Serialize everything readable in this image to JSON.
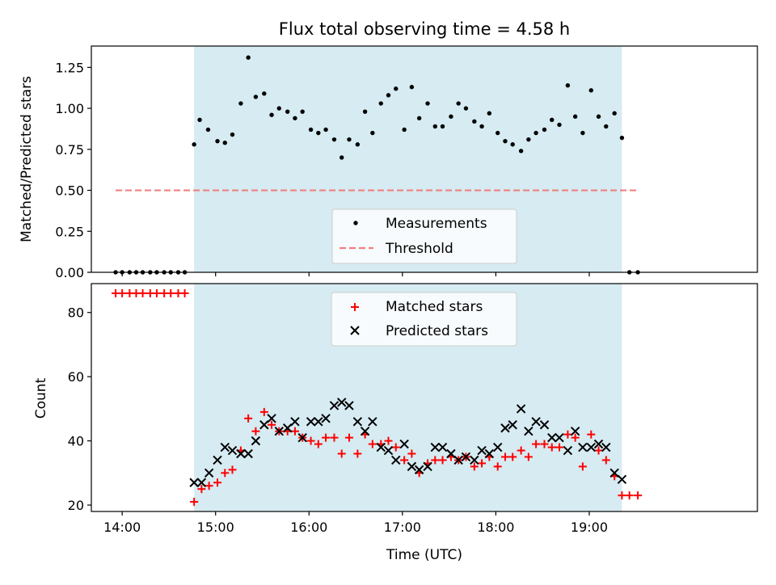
{
  "chart_data": [
    {
      "type": "scatter",
      "title": "Flux total observing time = 4.58 h",
      "ylabel": "Matched/Predicted stars",
      "xlabel": "",
      "xlim_hours": [
        13.67,
        20.8
      ],
      "ylim": [
        0,
        1.38
      ],
      "yticks": [
        "0.00",
        "0.25",
        "0.50",
        "0.75",
        "1.00",
        "1.25"
      ],
      "shaded_interval_hours": [
        14.77,
        19.35
      ],
      "threshold": {
        "name": "Threshold",
        "y": 0.5,
        "x_range_hours": [
          13.93,
          19.52
        ],
        "color": "#f08080"
      },
      "legend": {
        "placement": "lower-center",
        "entries": [
          "Measurements",
          "Threshold"
        ]
      },
      "series": [
        {
          "name": "Measurements",
          "color": "#000000",
          "points": [
            [
              13.93,
              0
            ],
            [
              14.0,
              0
            ],
            [
              14.08,
              0
            ],
            [
              14.15,
              0
            ],
            [
              14.22,
              0
            ],
            [
              14.3,
              0
            ],
            [
              14.37,
              0
            ],
            [
              14.45,
              0
            ],
            [
              14.52,
              0
            ],
            [
              14.6,
              0
            ],
            [
              14.67,
              0
            ],
            [
              14.77,
              0.78
            ],
            [
              14.83,
              0.93
            ],
            [
              14.92,
              0.87
            ],
            [
              15.02,
              0.8
            ],
            [
              15.1,
              0.79
            ],
            [
              15.18,
              0.84
            ],
            [
              15.27,
              1.03
            ],
            [
              15.35,
              1.31
            ],
            [
              15.43,
              1.07
            ],
            [
              15.52,
              1.09
            ],
            [
              15.6,
              0.96
            ],
            [
              15.68,
              1.0
            ],
            [
              15.77,
              0.98
            ],
            [
              15.85,
              0.94
            ],
            [
              15.93,
              0.98
            ],
            [
              16.02,
              0.87
            ],
            [
              16.1,
              0.85
            ],
            [
              16.18,
              0.87
            ],
            [
              16.27,
              0.81
            ],
            [
              16.35,
              0.7
            ],
            [
              16.43,
              0.81
            ],
            [
              16.52,
              0.78
            ],
            [
              16.6,
              0.98
            ],
            [
              16.68,
              0.85
            ],
            [
              16.77,
              1.03
            ],
            [
              16.85,
              1.08
            ],
            [
              16.93,
              1.12
            ],
            [
              17.02,
              0.87
            ],
            [
              17.1,
              1.13
            ],
            [
              17.18,
              0.94
            ],
            [
              17.27,
              1.03
            ],
            [
              17.35,
              0.89
            ],
            [
              17.43,
              0.89
            ],
            [
              17.52,
              0.95
            ],
            [
              17.6,
              1.03
            ],
            [
              17.68,
              1.0
            ],
            [
              17.77,
              0.92
            ],
            [
              17.85,
              0.89
            ],
            [
              17.93,
              0.97
            ],
            [
              18.02,
              0.85
            ],
            [
              18.1,
              0.8
            ],
            [
              18.18,
              0.78
            ],
            [
              18.27,
              0.74
            ],
            [
              18.35,
              0.81
            ],
            [
              18.43,
              0.85
            ],
            [
              18.52,
              0.87
            ],
            [
              18.6,
              0.93
            ],
            [
              18.68,
              0.9
            ],
            [
              18.77,
              1.14
            ],
            [
              18.85,
              0.95
            ],
            [
              18.93,
              0.85
            ],
            [
              19.02,
              1.11
            ],
            [
              19.1,
              0.95
            ],
            [
              19.18,
              0.89
            ],
            [
              19.27,
              0.97
            ],
            [
              19.35,
              0.82
            ],
            [
              19.43,
              0
            ],
            [
              19.52,
              0
            ]
          ]
        }
      ]
    },
    {
      "type": "scatter",
      "title": "",
      "xlabel": "Time (UTC)",
      "ylabel": "Count",
      "xlim_hours": [
        13.67,
        20.8
      ],
      "ylim": [
        18,
        89
      ],
      "xticks": [
        "14:00",
        "15:00",
        "16:00",
        "17:00",
        "18:00",
        "19:00"
      ],
      "yticks": [
        "20",
        "40",
        "60",
        "80"
      ],
      "shaded_interval_hours": [
        14.77,
        19.35
      ],
      "legend": {
        "placement": "upper-center",
        "entries": [
          "Matched stars",
          "Predicted stars"
        ]
      },
      "series": [
        {
          "name": "Matched stars",
          "color": "#ff0000",
          "points": [
            [
              13.93,
              86
            ],
            [
              14.0,
              86
            ],
            [
              14.08,
              86
            ],
            [
              14.15,
              86
            ],
            [
              14.22,
              86
            ],
            [
              14.3,
              86
            ],
            [
              14.37,
              86
            ],
            [
              14.45,
              86
            ],
            [
              14.52,
              86
            ],
            [
              14.6,
              86
            ],
            [
              14.67,
              86
            ],
            [
              14.77,
              21
            ],
            [
              14.85,
              25
            ],
            [
              14.93,
              26
            ],
            [
              15.02,
              27
            ],
            [
              15.1,
              30
            ],
            [
              15.18,
              31
            ],
            [
              15.27,
              37
            ],
            [
              15.35,
              47
            ],
            [
              15.43,
              43
            ],
            [
              15.52,
              49
            ],
            [
              15.6,
              45
            ],
            [
              15.68,
              43
            ],
            [
              15.77,
              43
            ],
            [
              15.85,
              43
            ],
            [
              15.93,
              41
            ],
            [
              16.02,
              40
            ],
            [
              16.1,
              39
            ],
            [
              16.18,
              41
            ],
            [
              16.27,
              41
            ],
            [
              16.35,
              36
            ],
            [
              16.43,
              41
            ],
            [
              16.52,
              36
            ],
            [
              16.6,
              42
            ],
            [
              16.68,
              39
            ],
            [
              16.77,
              39
            ],
            [
              16.85,
              40
            ],
            [
              16.93,
              38
            ],
            [
              17.02,
              34
            ],
            [
              17.1,
              36
            ],
            [
              17.18,
              30
            ],
            [
              17.27,
              33
            ],
            [
              17.35,
              34
            ],
            [
              17.43,
              34
            ],
            [
              17.52,
              35
            ],
            [
              17.6,
              34
            ],
            [
              17.68,
              35
            ],
            [
              17.77,
              32
            ],
            [
              17.85,
              33
            ],
            [
              17.93,
              35
            ],
            [
              18.02,
              32
            ],
            [
              18.1,
              35
            ],
            [
              18.18,
              35
            ],
            [
              18.27,
              37
            ],
            [
              18.35,
              35
            ],
            [
              18.43,
              39
            ],
            [
              18.52,
              39
            ],
            [
              18.6,
              38
            ],
            [
              18.68,
              38
            ],
            [
              18.77,
              42
            ],
            [
              18.85,
              41
            ],
            [
              18.93,
              32
            ],
            [
              19.02,
              42
            ],
            [
              19.1,
              37
            ],
            [
              19.18,
              34
            ],
            [
              19.27,
              29
            ],
            [
              19.35,
              23
            ],
            [
              19.43,
              23
            ],
            [
              19.52,
              23
            ]
          ]
        },
        {
          "name": "Predicted stars",
          "color": "#000000",
          "points": [
            [
              14.77,
              27
            ],
            [
              14.85,
              27
            ],
            [
              14.93,
              30
            ],
            [
              15.02,
              34
            ],
            [
              15.1,
              38
            ],
            [
              15.18,
              37
            ],
            [
              15.27,
              36
            ],
            [
              15.35,
              36
            ],
            [
              15.43,
              40
            ],
            [
              15.52,
              45
            ],
            [
              15.6,
              47
            ],
            [
              15.68,
              43
            ],
            [
              15.77,
              44
            ],
            [
              15.85,
              46
            ],
            [
              15.93,
              41
            ],
            [
              16.02,
              46
            ],
            [
              16.1,
              46
            ],
            [
              16.18,
              47
            ],
            [
              16.27,
              51
            ],
            [
              16.35,
              52
            ],
            [
              16.43,
              51
            ],
            [
              16.52,
              46
            ],
            [
              16.6,
              43
            ],
            [
              16.68,
              46
            ],
            [
              16.77,
              38
            ],
            [
              16.85,
              37
            ],
            [
              16.93,
              34
            ],
            [
              17.02,
              39
            ],
            [
              17.1,
              32
            ],
            [
              17.18,
              31
            ],
            [
              17.27,
              32
            ],
            [
              17.35,
              38
            ],
            [
              17.43,
              38
            ],
            [
              17.52,
              36
            ],
            [
              17.6,
              34
            ],
            [
              17.68,
              35
            ],
            [
              17.77,
              34
            ],
            [
              17.85,
              37
            ],
            [
              17.93,
              36
            ],
            [
              18.02,
              38
            ],
            [
              18.1,
              44
            ],
            [
              18.18,
              45
            ],
            [
              18.27,
              50
            ],
            [
              18.35,
              43
            ],
            [
              18.43,
              46
            ],
            [
              18.52,
              45
            ],
            [
              18.6,
              41
            ],
            [
              18.68,
              41
            ],
            [
              18.77,
              37
            ],
            [
              18.85,
              43
            ],
            [
              18.93,
              38
            ],
            [
              19.02,
              38
            ],
            [
              19.1,
              39
            ],
            [
              19.18,
              38
            ],
            [
              19.27,
              30
            ],
            [
              19.35,
              28
            ]
          ]
        }
      ]
    }
  ],
  "colors": {
    "shade": "#add8e6",
    "matched": "#ff0000",
    "predicted": "#000000",
    "measurements": "#000000",
    "threshold": "#f08080"
  }
}
